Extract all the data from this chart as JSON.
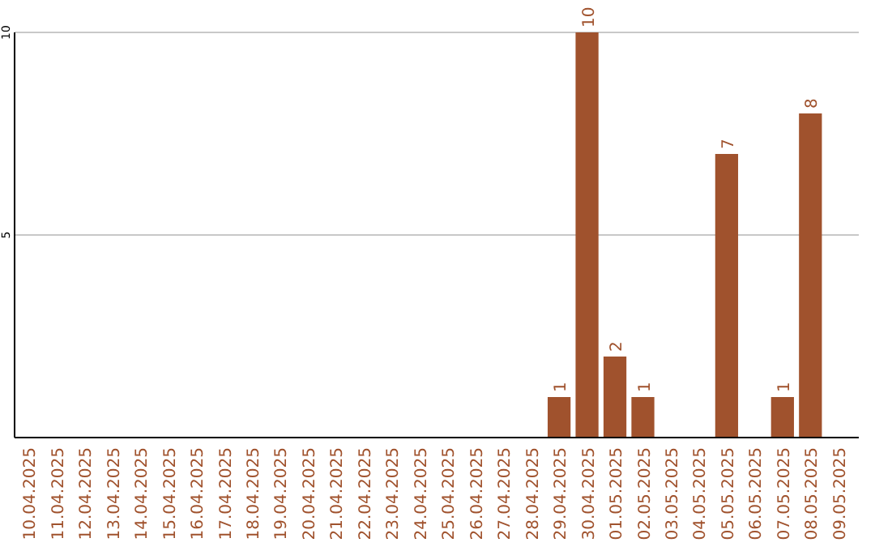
{
  "chart_data": {
    "type": "bar",
    "categories": [
      "10.04.2025",
      "11.04.2025",
      "12.04.2025",
      "13.04.2025",
      "14.04.2025",
      "15.04.2025",
      "16.04.2025",
      "17.04.2025",
      "18.04.2025",
      "19.04.2025",
      "20.04.2025",
      "21.04.2025",
      "22.04.2025",
      "23.04.2025",
      "24.04.2025",
      "25.04.2025",
      "26.04.2025",
      "27.04.2025",
      "28.04.2025",
      "29.04.2025",
      "30.04.2025",
      "01.05.2025",
      "02.05.2025",
      "03.05.2025",
      "04.05.2025",
      "05.05.2025",
      "06.05.2025",
      "07.05.2025",
      "08.05.2025",
      "09.05.2025"
    ],
    "values": [
      0,
      0,
      0,
      0,
      0,
      0,
      0,
      0,
      0,
      0,
      0,
      0,
      0,
      0,
      0,
      0,
      0,
      0,
      0,
      1,
      10,
      2,
      1,
      0,
      0,
      7,
      0,
      1,
      8,
      0
    ],
    "value_labels": [
      null,
      null,
      null,
      null,
      null,
      null,
      null,
      null,
      null,
      null,
      null,
      null,
      null,
      null,
      null,
      null,
      null,
      null,
      null,
      "1",
      "10",
      "2",
      "1",
      null,
      null,
      "7",
      null,
      "1",
      "8",
      null
    ],
    "color": "#a0522d",
    "ylim": [
      0,
      10
    ],
    "yticks": [
      5,
      10
    ],
    "grid": "y"
  }
}
